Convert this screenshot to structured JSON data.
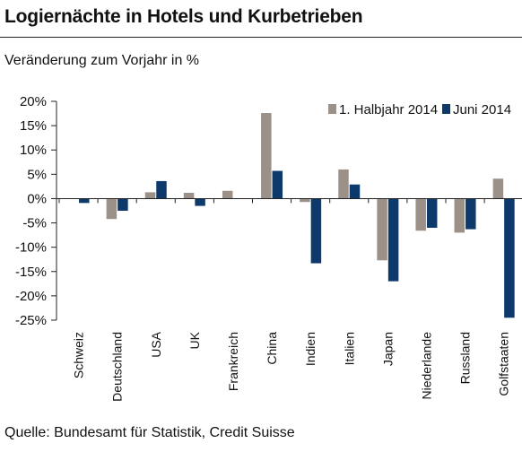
{
  "header": {
    "title": "Logiernächte in Hotels und Kurbetrieben",
    "subtitle": "Veränderung zum Vorjahr in %"
  },
  "footer": {
    "source": "Quelle: Bundesamt für Statistik, Credit Suisse"
  },
  "chart_data": {
    "type": "bar",
    "title": "Logiernächte in Hotels und Kurbetrieben",
    "ylabel": "Veränderung zum Vorjahr in %",
    "xlabel": "",
    "ylim": [
      -25,
      20
    ],
    "yticks": [
      20,
      15,
      10,
      5,
      0,
      -5,
      -10,
      -15,
      -20,
      -25
    ],
    "ytick_labels": [
      "20%",
      "15%",
      "10%",
      "5%",
      "0%",
      "-5%",
      "-10%",
      "-15%",
      "-20%",
      "-25%"
    ],
    "grid": false,
    "legend_position": "top-right",
    "categories": [
      "Schweiz",
      "Deutschland",
      "USA",
      "UK",
      "Frankreich",
      "China",
      "Indien",
      "Italien",
      "Japan",
      "Niederlande",
      "Russland",
      "Golfstaaten"
    ],
    "series": [
      {
        "name": "1. Halbjahr 2014",
        "color": "#9b9188",
        "values": [
          0.0,
          -4.2,
          1.3,
          1.2,
          1.6,
          17.6,
          -0.7,
          6.0,
          -12.7,
          -6.6,
          -7.0,
          4.1
        ]
      },
      {
        "name": "Juni 2014",
        "color": "#0d3a6b",
        "values": [
          -0.9,
          -2.5,
          3.6,
          -1.5,
          0.0,
          5.7,
          -13.3,
          2.9,
          -17.0,
          -6.0,
          -6.3,
          -24.5
        ]
      }
    ]
  }
}
